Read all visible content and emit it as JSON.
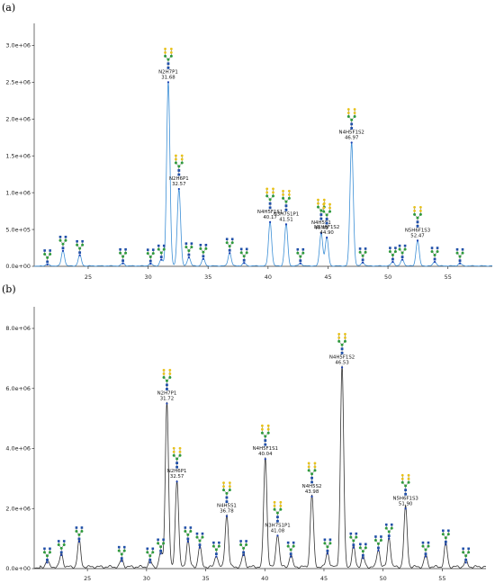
{
  "chart_data": [
    {
      "panel_label": "(a)",
      "type": "line",
      "color": "#3c8fd6",
      "x_ticks": [
        "25",
        "30",
        "35",
        "40",
        "45",
        "50",
        "55"
      ],
      "y_ticks": [
        "0.0e+00",
        "5.0e+05",
        "1.0e+06",
        "1.5e+06",
        "2.0e+06",
        "2.5e+06",
        "3.0e+06"
      ],
      "xlim": [
        20.5,
        58.7
      ],
      "ylim": [
        0,
        3250000
      ],
      "peaks": [
        {
          "x": 21.6,
          "y": 25000
        },
        {
          "x": 22.9,
          "y": 210000
        },
        {
          "x": 24.3,
          "y": 150000
        },
        {
          "x": 27.9,
          "y": 40000
        },
        {
          "x": 30.2,
          "y": 35000
        },
        {
          "x": 31.1,
          "y": 90000
        },
        {
          "x": 31.68,
          "y": 2500000,
          "name": "N2H7P1",
          "rt": "31.68"
        },
        {
          "x": 32.57,
          "y": 1050000,
          "name": "N2H6P1",
          "rt": "32.57"
        },
        {
          "x": 33.4,
          "y": 120000
        },
        {
          "x": 34.6,
          "y": 100000
        },
        {
          "x": 36.8,
          "y": 180000
        },
        {
          "x": 38.0,
          "y": 45000
        },
        {
          "x": 40.17,
          "y": 600000,
          "name": "N4H5F1S1",
          "rt": "40.17"
        },
        {
          "x": 41.51,
          "y": 570000,
          "name": "N3H7S1P1",
          "rt": "41.51"
        },
        {
          "x": 42.7,
          "y": 40000
        },
        {
          "x": 44.43,
          "y": 450000,
          "name": "N4H5S1",
          "rt": "44.43"
        },
        {
          "x": 44.9,
          "y": 390000,
          "name": "N5H6F1S2",
          "rt": "44.90"
        },
        {
          "x": 46.97,
          "y": 1680000,
          "name": "N4H5F1S2",
          "rt": "46.97"
        },
        {
          "x": 47.9,
          "y": 50000
        },
        {
          "x": 50.4,
          "y": 60000
        },
        {
          "x": 51.2,
          "y": 90000
        },
        {
          "x": 52.47,
          "y": 350000,
          "name": "N5H6F1S3",
          "rt": "52.47"
        },
        {
          "x": 53.9,
          "y": 60000
        },
        {
          "x": 56.0,
          "y": 40000
        }
      ]
    },
    {
      "panel_label": "(b)",
      "type": "line",
      "color": "#333333",
      "x_ticks": [
        "25",
        "30",
        "35",
        "40",
        "45",
        "50",
        "55"
      ],
      "y_ticks": [
        "0.0e+00",
        "2.0e+06",
        "4.0e+06",
        "6.0e+06",
        "8.0e+06"
      ],
      "xlim": [
        20.5,
        58.7
      ],
      "ylim": [
        0,
        8600000
      ],
      "peaks": [
        {
          "x": 21.6,
          "y": 200000
        },
        {
          "x": 22.8,
          "y": 450000
        },
        {
          "x": 24.3,
          "y": 900000
        },
        {
          "x": 27.9,
          "y": 250000
        },
        {
          "x": 30.3,
          "y": 200000
        },
        {
          "x": 31.2,
          "y": 500000
        },
        {
          "x": 31.72,
          "y": 5500000,
          "name": "N2H7P1",
          "rt": "31.72"
        },
        {
          "x": 32.57,
          "y": 2900000,
          "name": "N2H6P1",
          "rt": "32.57"
        },
        {
          "x": 33.5,
          "y": 900000
        },
        {
          "x": 34.5,
          "y": 700000
        },
        {
          "x": 35.9,
          "y": 400000
        },
        {
          "x": 36.78,
          "y": 1750000,
          "name": "N4H5S1",
          "rt": "36.78"
        },
        {
          "x": 38.2,
          "y": 450000
        },
        {
          "x": 40.04,
          "y": 3650000,
          "name": "N4H5F1S1",
          "rt": "40.04"
        },
        {
          "x": 41.08,
          "y": 1100000,
          "name": "N3H7S1P1",
          "rt": "41.08"
        },
        {
          "x": 42.2,
          "y": 400000
        },
        {
          "x": 43.98,
          "y": 2400000,
          "name": "N4H5S2",
          "rt": "43.98"
        },
        {
          "x": 45.3,
          "y": 500000
        },
        {
          "x": 46.53,
          "y": 6700000,
          "name": "N4H5F1S2",
          "rt": "46.53"
        },
        {
          "x": 47.5,
          "y": 700000
        },
        {
          "x": 48.3,
          "y": 350000
        },
        {
          "x": 49.6,
          "y": 600000
        },
        {
          "x": 50.5,
          "y": 1000000
        },
        {
          "x": 51.9,
          "y": 2000000,
          "name": "N5H6F1S3",
          "rt": "51.90"
        },
        {
          "x": 53.6,
          "y": 400000
        },
        {
          "x": 55.3,
          "y": 800000
        },
        {
          "x": 57.0,
          "y": 200000
        }
      ]
    }
  ]
}
